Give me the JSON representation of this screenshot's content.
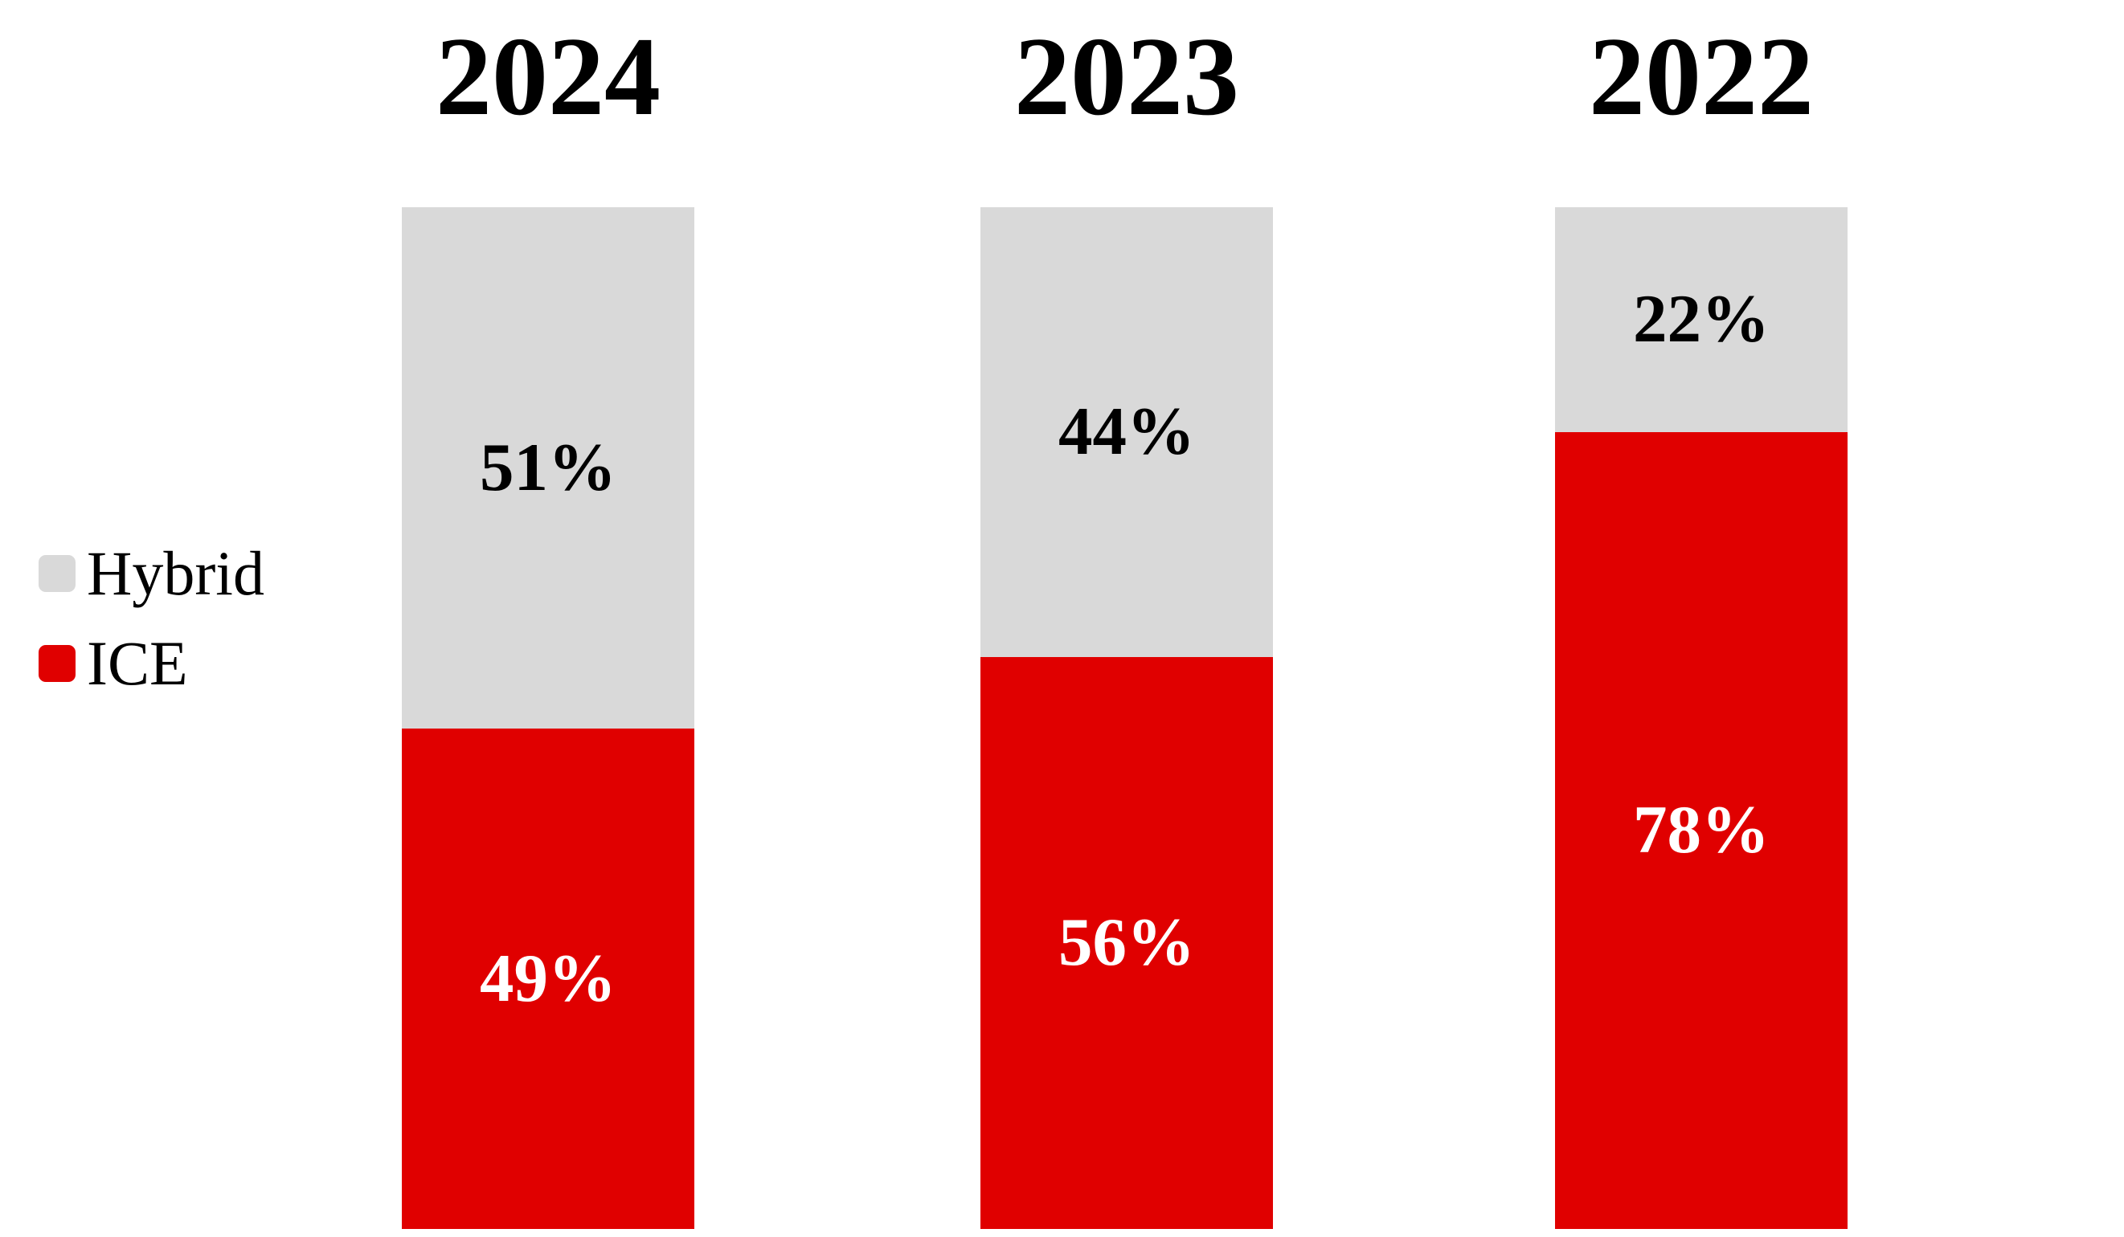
{
  "chart_data": {
    "type": "bar",
    "subtype": "100-percent-stacked-column",
    "categories": [
      "2024",
      "2023",
      "2022"
    ],
    "series": [
      {
        "name": "Hybrid",
        "color": "#D9D9D9",
        "values": [
          51,
          44,
          22
        ]
      },
      {
        "name": "ICE",
        "color": "#E00000",
        "values": [
          49,
          56,
          78
        ]
      }
    ],
    "title": "",
    "xlabel": "",
    "ylabel": "",
    "ylim": [
      0,
      100
    ],
    "grid": false,
    "legend_position": "left",
    "value_label_format": "percent"
  },
  "legend": {
    "items": [
      {
        "label": "Hybrid",
        "color": "#D9D9D9"
      },
      {
        "label": "ICE",
        "color": "#E00000"
      }
    ]
  },
  "columns": [
    {
      "year": "2024",
      "hybrid_pct": 51,
      "ice_pct": 49,
      "hybrid_label": "51%",
      "ice_label": "49%"
    },
    {
      "year": "2023",
      "hybrid_pct": 44,
      "ice_pct": 56,
      "hybrid_label": "44%",
      "ice_label": "56%"
    },
    {
      "year": "2022",
      "hybrid_pct": 22,
      "ice_pct": 78,
      "hybrid_label": "22%",
      "ice_label": "78%"
    }
  ],
  "colors": {
    "hybrid": "#D9D9D9",
    "ice": "#E00000",
    "background": "#FFFFFF",
    "label_on_hybrid": "#000000",
    "label_on_ice": "#FFFFFF",
    "title_text": "#000000"
  }
}
